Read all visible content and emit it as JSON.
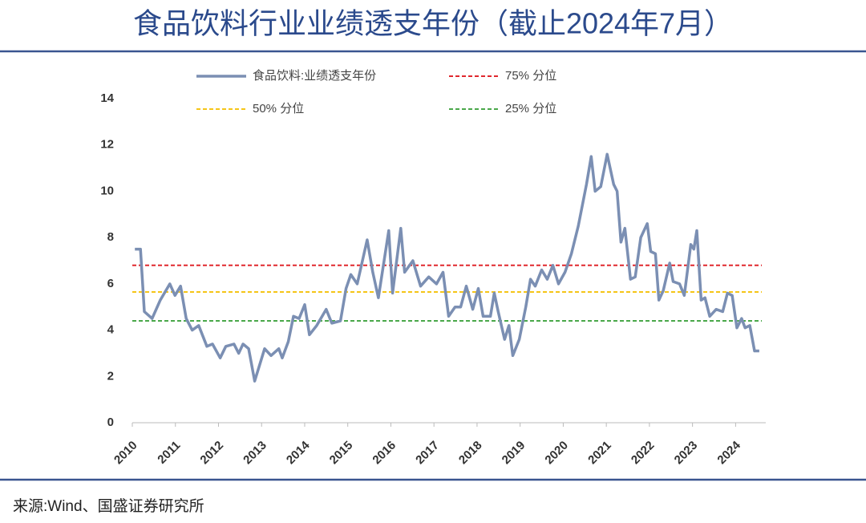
{
  "chart_data": {
    "type": "line",
    "title": "食品饮料行业业绩透支年份（截止2024年7月）",
    "source": "来源:Wind、国盛证券研究所",
    "x": [
      2010.06,
      2010.19,
      2010.28,
      2010.46,
      2010.65,
      2010.87,
      2010.99,
      2011.12,
      2011.25,
      2011.39,
      2011.54,
      2011.73,
      2011.86,
      2012.04,
      2012.17,
      2012.36,
      2012.47,
      2012.57,
      2012.7,
      2012.84,
      2013.07,
      2013.22,
      2013.4,
      2013.48,
      2013.62,
      2013.74,
      2013.87,
      2014.0,
      2014.11,
      2014.28,
      2014.5,
      2014.63,
      2014.83,
      2014.96,
      2015.07,
      2015.22,
      2015.45,
      2015.58,
      2015.71,
      2015.95,
      2016.04,
      2016.23,
      2016.32,
      2016.51,
      2016.69,
      2016.88,
      2017.06,
      2017.21,
      2017.34,
      2017.49,
      2017.62,
      2017.75,
      2017.9,
      2018.03,
      2018.14,
      2018.31,
      2018.4,
      2018.49,
      2018.64,
      2018.74,
      2018.83,
      2018.98,
      2019.13,
      2019.24,
      2019.35,
      2019.5,
      2019.63,
      2019.76,
      2019.89,
      2020.04,
      2020.19,
      2020.35,
      2020.54,
      2020.65,
      2020.74,
      2020.87,
      2021.02,
      2021.17,
      2021.25,
      2021.34,
      2021.43,
      2021.56,
      2021.67,
      2021.8,
      2021.95,
      2022.03,
      2022.14,
      2022.22,
      2022.32,
      2022.47,
      2022.55,
      2022.7,
      2022.81,
      2022.96,
      2023.03,
      2023.1,
      2023.2,
      2023.29,
      2023.4,
      2023.55,
      2023.7,
      2023.81,
      2023.92,
      2024.03,
      2024.14,
      2024.22,
      2024.33,
      2024.44,
      2024.55
    ],
    "series": [
      {
        "name": "食品饮料:业绩透支年份",
        "color": "#7b8fb3",
        "values": [
          7.5,
          7.5,
          4.8,
          4.5,
          5.3,
          6.0,
          5.5,
          5.9,
          4.5,
          4.0,
          4.2,
          3.3,
          3.4,
          2.8,
          3.3,
          3.4,
          3.0,
          3.4,
          3.2,
          1.8,
          3.2,
          2.9,
          3.2,
          2.8,
          3.5,
          4.6,
          4.5,
          5.1,
          3.8,
          4.2,
          4.9,
          4.3,
          4.4,
          5.8,
          6.4,
          6.0,
          7.9,
          6.5,
          5.4,
          8.3,
          5.6,
          8.4,
          6.5,
          7.0,
          5.9,
          6.3,
          6.0,
          6.5,
          4.6,
          5.0,
          5.0,
          5.9,
          4.9,
          5.8,
          4.6,
          4.6,
          5.6,
          4.8,
          3.6,
          4.2,
          2.9,
          3.6,
          5.0,
          6.2,
          5.9,
          6.6,
          6.2,
          6.8,
          6.0,
          6.5,
          7.3,
          8.5,
          10.3,
          11.5,
          10.0,
          10.2,
          11.6,
          10.3,
          10.0,
          7.8,
          8.4,
          6.2,
          6.3,
          8.0,
          8.6,
          7.4,
          7.3,
          5.3,
          5.7,
          6.9,
          6.1,
          6.0,
          5.5,
          7.7,
          7.5,
          8.3,
          5.3,
          5.4,
          4.6,
          4.9,
          4.8,
          5.6,
          5.5,
          4.1,
          4.5,
          4.1,
          4.2,
          3.1,
          3.1
        ]
      }
    ],
    "reference_lines": [
      {
        "name": "75% 分位",
        "value": 6.8,
        "color": "#e0282e"
      },
      {
        "name": "50% 分位",
        "value": 5.65,
        "color": "#f5c518"
      },
      {
        "name": "25% 分位",
        "value": 4.4,
        "color": "#4aa84a"
      }
    ],
    "xlim": [
      2010,
      2024.7
    ],
    "xticks": [
      2010,
      2011,
      2012,
      2013,
      2014,
      2015,
      2016,
      2017,
      2018,
      2019,
      2020,
      2021,
      2022,
      2023,
      2024
    ],
    "ylim": [
      0,
      14
    ],
    "yticks": [
      0,
      2,
      4,
      6,
      8,
      10,
      12,
      14
    ]
  }
}
